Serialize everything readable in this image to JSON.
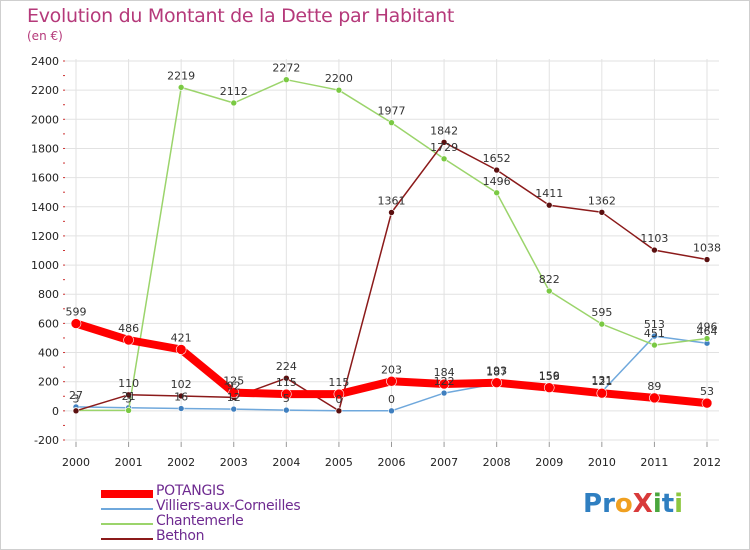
{
  "title": "Evolution du Montant de la Dette par Habitant",
  "unit": "(en €)",
  "logo": {
    "text": "ProXiti",
    "colors": [
      "#2f7fc1",
      "#2f7fc1",
      "#f0a020",
      "#d83a3a",
      "#4aa63d",
      "#2f7fc1",
      "#8cc63f"
    ]
  },
  "chart_data": {
    "type": "line",
    "title": "Evolution du Montant de la Dette par Habitant",
    "ylabel": "(en €)",
    "xlabel": "",
    "x": [
      "2000",
      "2001",
      "2002",
      "2003",
      "2004",
      "2005",
      "2006",
      "2007",
      "2008",
      "2009",
      "2010",
      "2011",
      "2012"
    ],
    "ylim": [
      -200,
      2400
    ],
    "yticks": [
      "-200",
      "0",
      "200",
      "400",
      "600",
      "800",
      "1000",
      "1200",
      "1400",
      "1600",
      "1800",
      "2000",
      "2200",
      "2400"
    ],
    "grid": true,
    "legend_position": "bottom-left",
    "series": [
      {
        "name": "POTANGIS",
        "color": "#ff0000",
        "width": 8,
        "values": [
          599,
          486,
          421,
          125,
          115,
          115,
          203,
          184,
          193,
          159,
          121,
          89,
          53
        ],
        "labels": [
          "599",
          "486",
          "421",
          "125",
          "115",
          "115",
          "203",
          "184",
          "193",
          "159",
          "121",
          "89",
          "53"
        ]
      },
      {
        "name": "Villiers-aux-Corneilles",
        "color": "#6fa8dc",
        "width": 1.5,
        "values": [
          27,
          21,
          16,
          12,
          5,
          0,
          0,
          122,
          187,
          156,
          131,
          513,
          464
        ],
        "labels": [
          "27",
          "21",
          "16",
          "12",
          "5",
          "0",
          "0",
          "122",
          "187",
          "156",
          "131",
          "513",
          "464"
        ]
      },
      {
        "name": "Chantemerle",
        "color": "#9bd46b",
        "width": 1.5,
        "values": [
          3,
          3,
          2219,
          2112,
          2272,
          2200,
          1977,
          1729,
          1496,
          822,
          595,
          451,
          496
        ],
        "labels": [
          "3",
          "3",
          "2219",
          "2112",
          "2272",
          "2200",
          "1977",
          "1729",
          "1496",
          "822",
          "595",
          "451",
          "496"
        ]
      },
      {
        "name": "Bethon",
        "color": "#8b1a1a",
        "width": 1.5,
        "values": [
          0,
          110,
          102,
          92,
          224,
          0,
          1361,
          1842,
          1652,
          1411,
          1362,
          1103,
          1038
        ],
        "labels": [
          "",
          "110",
          "102",
          "92",
          "224",
          "",
          "1361",
          "1842",
          "1652",
          "1411",
          "1362",
          "1103",
          "1038"
        ]
      }
    ]
  }
}
